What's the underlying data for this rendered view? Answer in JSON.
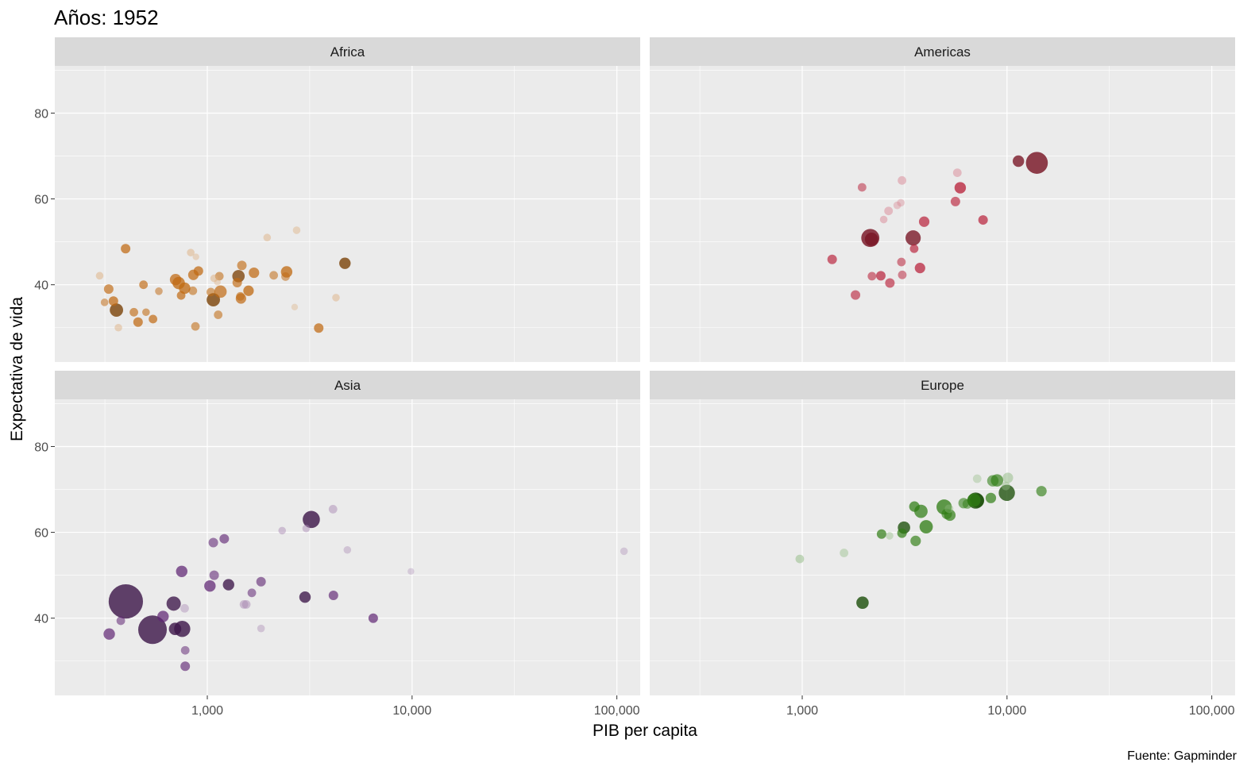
{
  "chart_data": {
    "type": "scatter",
    "title": "Años: 1952",
    "xlabel": "PIB per capita",
    "ylabel": "Expectativa de vida",
    "caption": "Fuente: Gapminder",
    "x_scale": "log10",
    "xlim": [
      180,
      130000
    ],
    "ylim": [
      22,
      91
    ],
    "x_ticks": [
      1000,
      10000,
      100000
    ],
    "x_tick_labels": [
      "1,000",
      "10,000",
      "100,000"
    ],
    "y_ticks": [
      40,
      60,
      80
    ],
    "y_tick_labels": [
      "40",
      "60",
      "80"
    ],
    "grid": true,
    "legend": "none",
    "panels": [
      {
        "name": "Africa",
        "color": "#c06a13",
        "points": [
          [
            298,
            42.1,
            0.8,
            0.45
          ],
          [
            315,
            35.9,
            0.8,
            0.5
          ],
          [
            330,
            39,
            1,
            0.75
          ],
          [
            348,
            36.2,
            1,
            0.85
          ],
          [
            360,
            34.1,
            1.4,
            1
          ],
          [
            368,
            30,
            0.8,
            0.4
          ],
          [
            399,
            48.4,
            1,
            0.85
          ],
          [
            438,
            33.6,
            0.9,
            0.7
          ],
          [
            459,
            31.3,
            1,
            0.85
          ],
          [
            488,
            40,
            0.9,
            0.75
          ],
          [
            502,
            33.6,
            0.8,
            0.6
          ],
          [
            543,
            32,
            0.9,
            0.8
          ],
          [
            580,
            38.5,
            0.8,
            0.5
          ],
          [
            700,
            41.2,
            1.2,
            0.85
          ],
          [
            725,
            40.4,
            1.3,
            0.9
          ],
          [
            745,
            37.5,
            0.9,
            0.8
          ],
          [
            775,
            39.2,
            1.2,
            0.9
          ],
          [
            830,
            47.5,
            0.8,
            0.45
          ],
          [
            850,
            38.6,
            0.9,
            0.6
          ],
          [
            855,
            42.3,
            1.1,
            0.85
          ],
          [
            875,
            30.3,
            0.9,
            0.6
          ],
          [
            880,
            46.5,
            0.7,
            0.3
          ],
          [
            905,
            43.2,
            1,
            0.85
          ],
          [
            1040,
            38.3,
            0.9,
            0.6
          ],
          [
            1070,
            36.5,
            1.4,
            1
          ],
          [
            1080,
            41.5,
            0.8,
            0.45
          ],
          [
            1120,
            40.6,
            0.7,
            0.3
          ],
          [
            1130,
            33,
            0.9,
            0.6
          ],
          [
            1145,
            42,
            0.9,
            0.6
          ],
          [
            1160,
            38.4,
            1.3,
            0.8
          ],
          [
            1400,
            40.5,
            1,
            0.75
          ],
          [
            1420,
            42,
            1.3,
            0.95
          ],
          [
            1450,
            37.3,
            0.9,
            0.6
          ],
          [
            1460,
            36.8,
            1.1,
            0.8
          ],
          [
            1475,
            44.5,
            1,
            0.7
          ],
          [
            1590,
            38.6,
            1.1,
            0.9
          ],
          [
            1690,
            42.8,
            1.1,
            0.85
          ],
          [
            1960,
            51,
            0.8,
            0.4
          ],
          [
            2110,
            42.2,
            0.9,
            0.55
          ],
          [
            2440,
            43,
            1.2,
            0.9
          ],
          [
            2410,
            41.9,
            0.9,
            0.5
          ],
          [
            2670,
            34.8,
            0.7,
            0.25
          ],
          [
            2730,
            52.7,
            0.8,
            0.35
          ],
          [
            3500,
            29.9,
            1,
            0.85
          ],
          [
            4250,
            37,
            0.8,
            0.4
          ],
          [
            4700,
            45,
            1.2,
            1
          ]
        ]
      },
      {
        "name": "Americas",
        "color": "#b82039",
        "points": [
          [
            1400,
            45.9,
            1,
            0.75
          ],
          [
            1820,
            37.6,
            1,
            0.65
          ],
          [
            1960,
            62.7,
            0.9,
            0.5
          ],
          [
            2150,
            50.9,
            1.9,
            1
          ],
          [
            2180,
            50.6,
            1.4,
            0.95
          ],
          [
            2190,
            42,
            0.9,
            0.6
          ],
          [
            2420,
            42.1,
            1,
            0.8
          ],
          [
            2500,
            55.2,
            0.8,
            0.45
          ],
          [
            2640,
            57.2,
            0.9,
            0.45
          ],
          [
            2680,
            40.4,
            1,
            0.7
          ],
          [
            2910,
            58.5,
            0.8,
            0.3
          ],
          [
            3030,
            59.1,
            0.8,
            0.3
          ],
          [
            3050,
            45.3,
            0.9,
            0.55
          ],
          [
            3070,
            64.3,
            0.9,
            0.45
          ],
          [
            3080,
            42.3,
            0.9,
            0.5
          ],
          [
            3480,
            50.9,
            1.6,
            0.95
          ],
          [
            3520,
            48.4,
            0.9,
            0.75
          ],
          [
            3760,
            43.9,
            1.1,
            0.85
          ],
          [
            3940,
            54.7,
            1.1,
            0.8
          ],
          [
            5600,
            59.4,
            1,
            0.7
          ],
          [
            5720,
            66.1,
            0.9,
            0.45
          ],
          [
            5910,
            62.6,
            1.2,
            0.9
          ],
          [
            7640,
            55.1,
            1,
            0.8
          ],
          [
            11370,
            68.8,
            1.2,
            0.95
          ],
          [
            13990,
            68.4,
            2.3,
            1
          ]
        ]
      },
      {
        "name": "Asia",
        "color": "#5f2573",
        "points": [
          [
            332,
            36.3,
            1.2,
            0.8
          ],
          [
            378,
            39.4,
            0.9,
            0.55
          ],
          [
            400,
            43.9,
            3.6,
            1
          ],
          [
            540,
            37.3,
            3,
            1
          ],
          [
            608,
            40.4,
            1.2,
            0.85
          ],
          [
            685,
            43.4,
            1.5,
            0.95
          ],
          [
            696,
            37.5,
            1.3,
            1
          ],
          [
            754,
            37.5,
            1.7,
            1
          ],
          [
            750,
            50.9,
            1.2,
            0.85
          ],
          [
            775,
            42.3,
            0.9,
            0.35
          ],
          [
            780,
            28.8,
            1,
            0.7
          ],
          [
            780,
            32.5,
            0.9,
            0.5
          ],
          [
            1030,
            47.5,
            1.2,
            0.85
          ],
          [
            1070,
            57.6,
            1,
            0.6
          ],
          [
            1080,
            50,
            1,
            0.6
          ],
          [
            1210,
            58.5,
            1,
            0.7
          ],
          [
            1270,
            47.8,
            1.2,
            0.95
          ],
          [
            1510,
            43.2,
            0.9,
            0.45
          ],
          [
            1550,
            43.2,
            0.9,
            0.45
          ],
          [
            1650,
            45.9,
            0.9,
            0.55
          ],
          [
            1830,
            48.5,
            1,
            0.65
          ],
          [
            1830,
            37.6,
            0.8,
            0.3
          ],
          [
            2320,
            60.4,
            0.8,
            0.4
          ],
          [
            3000,
            44.9,
            1.2,
            0.95
          ],
          [
            3040,
            60.9,
            0.8,
            0.4
          ],
          [
            3220,
            63,
            1.8,
            1
          ],
          [
            4130,
            45.3,
            1,
            0.75
          ],
          [
            4110,
            65.4,
            0.9,
            0.45
          ],
          [
            4830,
            55.9,
            0.8,
            0.3
          ],
          [
            6460,
            40,
            1,
            0.8
          ],
          [
            9870,
            50.9,
            0.7,
            0.2
          ],
          [
            108380,
            55.6,
            0.8,
            0.25
          ]
        ]
      },
      {
        "name": "Europe",
        "color": "#2f7d14",
        "points": [
          [
            973,
            53.8,
            0.9,
            0.45
          ],
          [
            1600,
            55.2,
            0.9,
            0.3
          ],
          [
            1970,
            43.6,
            1.3,
            1
          ],
          [
            2440,
            59.6,
            1,
            0.8
          ],
          [
            2670,
            59.2,
            0.8,
            0.3
          ],
          [
            3070,
            59.8,
            1,
            0.8
          ],
          [
            3140,
            61.1,
            1.3,
            0.95
          ],
          [
            3530,
            66,
            1.1,
            0.85
          ],
          [
            3580,
            58,
            1.1,
            0.75
          ],
          [
            3800,
            64.9,
            1.4,
            0.85
          ],
          [
            4030,
            61.3,
            1.4,
            0.9
          ],
          [
            4930,
            65.9,
            1.6,
            0.9
          ],
          [
            5080,
            64.3,
            1.1,
            0.65
          ],
          [
            5260,
            64,
            1.2,
            0.8
          ],
          [
            5210,
            65.5,
            0.9,
            0.35
          ],
          [
            6140,
            66.8,
            1.1,
            0.6
          ],
          [
            6400,
            66.6,
            1,
            0.5
          ],
          [
            6890,
            67.5,
            1.4,
            0.9
          ],
          [
            7030,
            67.4,
            1.7,
            1
          ],
          [
            7140,
            67.4,
            1.5,
            1
          ],
          [
            7150,
            72.5,
            0.9,
            0.25
          ],
          [
            8340,
            68,
            1.1,
            0.8
          ],
          [
            8530,
            72,
            1.2,
            0.6
          ],
          [
            8940,
            72.1,
            1.3,
            0.75
          ],
          [
            9870,
            70.8,
            0.9,
            0.4
          ],
          [
            9980,
            69.2,
            1.7,
            0.95
          ],
          [
            10100,
            72.7,
            1.1,
            0.45
          ],
          [
            14730,
            69.6,
            1.1,
            0.7
          ]
        ]
      }
    ]
  }
}
